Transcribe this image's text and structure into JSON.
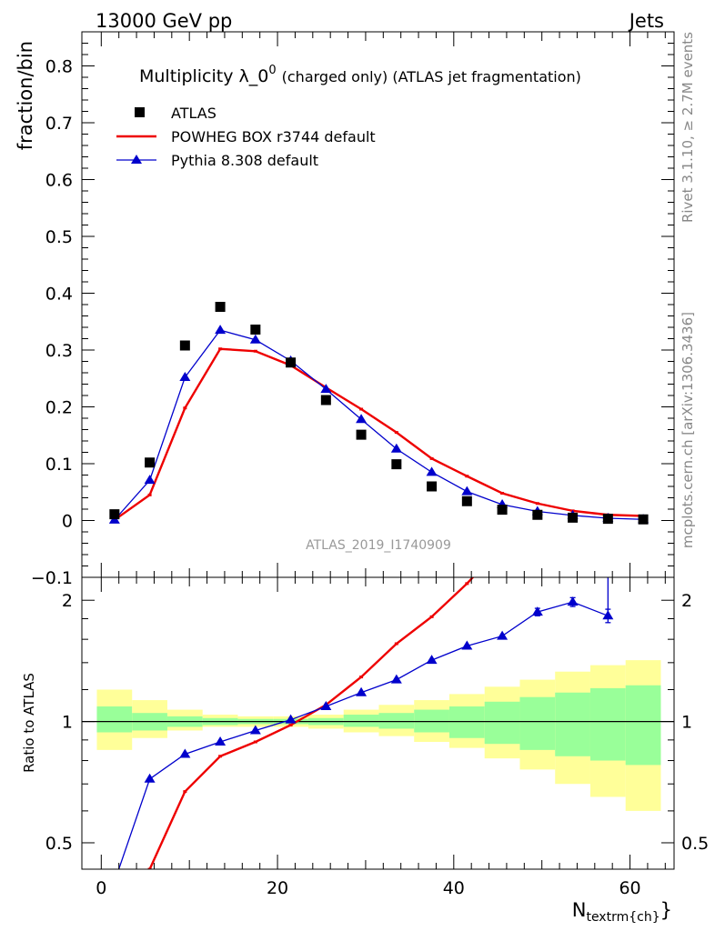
{
  "header": {
    "left": "13000 GeV pp",
    "right": "Jets"
  },
  "side_labels": {
    "rivet": "Rivet 3.1.10, ≥ 2.7M events",
    "mcplots": "mcplots.cern.ch [arXiv:1306.3436]"
  },
  "chart_data": [
    {
      "type": "line",
      "title": "Multiplicity λ_0",
      "title_sup": "0",
      "subtitle": "(charged only) (ATLAS jet fragmentation)",
      "analysis_label": "ATLAS_2019_I1740909",
      "ylabel": "fraction/bin",
      "ylim": [
        -0.1,
        0.86
      ],
      "yticks": [
        -0.1,
        0,
        0.1,
        0.2,
        0.3,
        0.4,
        0.5,
        0.6,
        0.7,
        0.8
      ],
      "ytick_labels": [
        "−0.1",
        "0",
        "0.1",
        "0.2",
        "0.3",
        "0.4",
        "0.5",
        "0.6",
        "0.7",
        "0.8"
      ],
      "xlim": [
        -2.2,
        65
      ],
      "legend_position": "top-left",
      "x": [
        1.5,
        5.5,
        9.5,
        13.5,
        17.5,
        21.5,
        25.5,
        29.5,
        33.5,
        37.5,
        41.5,
        45.5,
        49.5,
        53.5,
        57.5,
        61.5
      ],
      "series": [
        {
          "name": "ATLAS",
          "color": "#000000",
          "marker": "square",
          "values": [
            0.011,
            0.102,
            0.308,
            0.376,
            0.336,
            0.278,
            0.212,
            0.151,
            0.099,
            0.06,
            0.034,
            0.019,
            0.01,
            0.005,
            0.003,
            0.002
          ]
        },
        {
          "name": "POWHEG BOX r3744 default",
          "color": "#ee0000",
          "marker": "tick",
          "values": [
            0.001,
            0.045,
            0.198,
            0.302,
            0.298,
            0.273,
            0.234,
            0.196,
            0.155,
            0.109,
            0.078,
            0.048,
            0.03,
            0.017,
            0.01,
            0.008
          ]
        },
        {
          "name": "Pythia 8.308 default",
          "color": "#0000cc",
          "marker": "triangle",
          "values": [
            0.001,
            0.071,
            0.252,
            0.335,
            0.318,
            0.281,
            0.231,
            0.178,
            0.126,
            0.085,
            0.051,
            0.028,
            0.016,
            0.009,
            0.004,
            0.002
          ]
        }
      ]
    },
    {
      "type": "line",
      "ylabel": "Ratio to ATLAS",
      "xlabel": "N",
      "xlabel_sub": "textrm{ch}",
      "xlabel_close": "}",
      "log_scale_y": true,
      "ylim": [
        0.43,
        2.28
      ],
      "yticks": [
        0.5,
        1,
        2
      ],
      "ytick_labels": [
        "0.5",
        "1",
        "2"
      ],
      "xlim": [
        -2.2,
        65
      ],
      "xticks": [
        0,
        20,
        40,
        60
      ],
      "xtick_labels": [
        "0",
        "20",
        "40",
        "60"
      ],
      "band_edges": [
        -0.5,
        3.5,
        7.5,
        11.5,
        15.5,
        19.5,
        23.5,
        27.5,
        31.5,
        35.5,
        39.5,
        43.5,
        47.5,
        51.5,
        55.5,
        59.5
      ],
      "band_inner": [
        [
          0.94,
          1.09
        ],
        [
          0.95,
          1.05
        ],
        [
          0.97,
          1.03
        ],
        [
          0.98,
          1.02
        ],
        [
          0.985,
          1.015
        ],
        [
          0.985,
          1.015
        ],
        [
          0.98,
          1.02
        ],
        [
          0.97,
          1.04
        ],
        [
          0.96,
          1.05
        ],
        [
          0.94,
          1.07
        ],
        [
          0.91,
          1.09
        ],
        [
          0.88,
          1.12
        ],
        [
          0.85,
          1.15
        ],
        [
          0.82,
          1.18
        ],
        [
          0.8,
          1.21
        ],
        [
          0.78,
          1.23
        ]
      ],
      "band_outer": [
        [
          0.85,
          1.2
        ],
        [
          0.91,
          1.13
        ],
        [
          0.95,
          1.07
        ],
        [
          0.97,
          1.04
        ],
        [
          0.97,
          1.03
        ],
        [
          0.97,
          1.03
        ],
        [
          0.96,
          1.04
        ],
        [
          0.94,
          1.07
        ],
        [
          0.92,
          1.1
        ],
        [
          0.89,
          1.13
        ],
        [
          0.86,
          1.17
        ],
        [
          0.81,
          1.22
        ],
        [
          0.76,
          1.27
        ],
        [
          0.7,
          1.33
        ],
        [
          0.65,
          1.38
        ],
        [
          0.6,
          1.42
        ]
      ],
      "series": [
        {
          "name": "POWHEG BOX r3744 default",
          "color": "#ee0000",
          "x": [
            5.5,
            9.5,
            13.5,
            17.5,
            21.5,
            25.5,
            29.5,
            33.5,
            37.5,
            41.5,
            43.5
          ],
          "values": [
            0.43,
            0.67,
            0.82,
            0.89,
            0.98,
            1.1,
            1.29,
            1.56,
            1.82,
            2.2,
            2.45
          ]
        },
        {
          "name": "Pythia 8.308 default",
          "color": "#0000cc",
          "x": [
            1.5,
            5.5,
            9.5,
            13.5,
            17.5,
            21.5,
            25.5,
            29.5,
            33.5,
            37.5,
            41.5,
            45.5,
            49.5,
            53.5,
            57.5
          ],
          "values": [
            0.4,
            0.72,
            0.83,
            0.89,
            0.95,
            1.01,
            1.09,
            1.18,
            1.27,
            1.42,
            1.54,
            1.63,
            1.87,
            1.98,
            1.83
          ],
          "errors": [
            0,
            0,
            0,
            0,
            0,
            0,
            0,
            0,
            0,
            0,
            0,
            0,
            0.04,
            0.05,
            0.07
          ]
        }
      ]
    }
  ]
}
